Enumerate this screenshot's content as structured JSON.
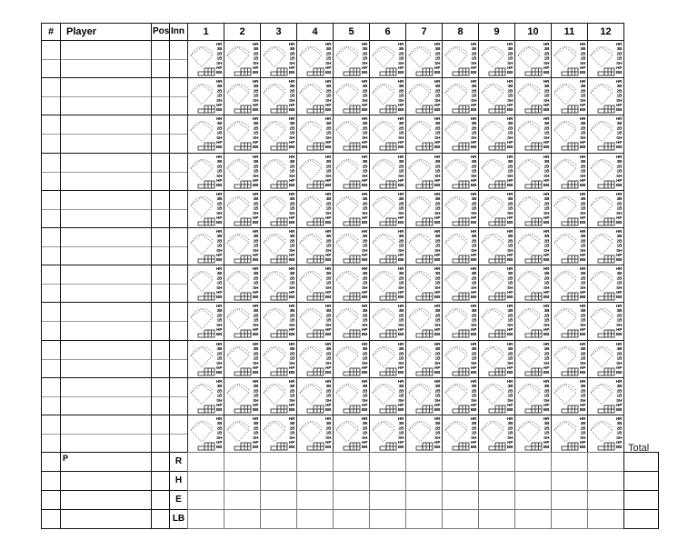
{
  "header": {
    "number": "#",
    "player": "Player",
    "position": "Pos",
    "inning": "Inn",
    "innings": [
      "1",
      "2",
      "3",
      "4",
      "5",
      "6",
      "7",
      "8",
      "9",
      "10",
      "11",
      "12"
    ]
  },
  "batter_rows": 11,
  "at_bat_labels": [
    "HR",
    "3B",
    "2B",
    "1B",
    "SH",
    "HP",
    "BB"
  ],
  "footer": {
    "pitcher_label": "P",
    "rows": [
      "R",
      "H",
      "E",
      "LB"
    ],
    "total_label": "Total"
  }
}
